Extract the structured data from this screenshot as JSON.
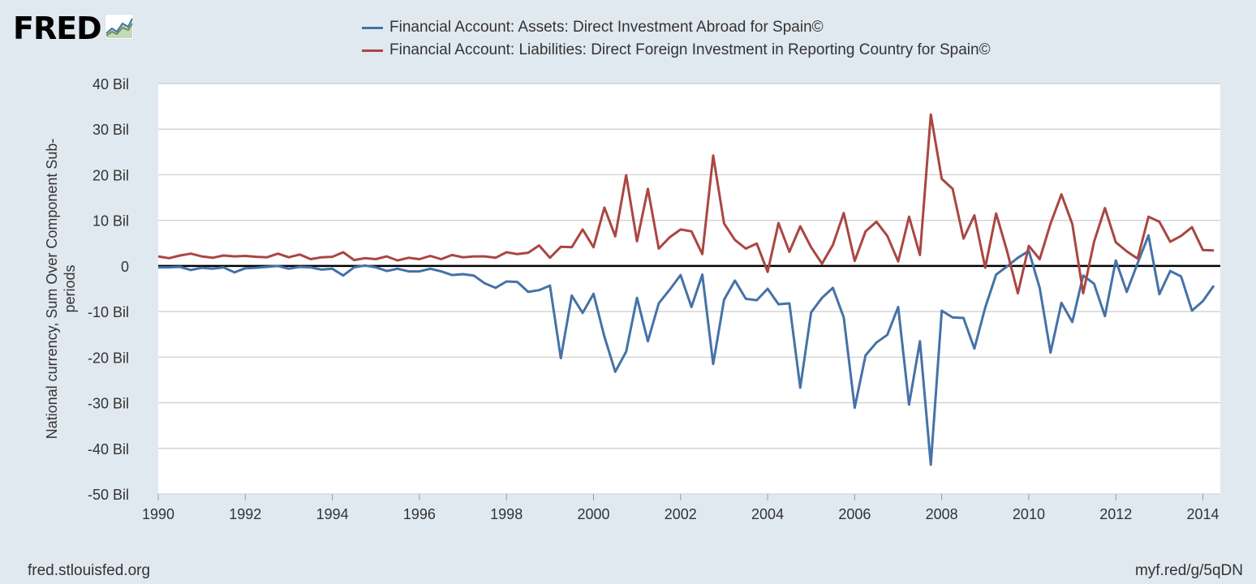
{
  "logo": {
    "text": "FRED",
    "icon": "chart-line-icon"
  },
  "footer": {
    "source": "fred.stlouisfed.org",
    "short_link": "myf.red/g/5qDN"
  },
  "chart_data": {
    "type": "line",
    "ylabel": "National currency, Sum Over Component Sub-periods",
    "ylim": [
      -50,
      40
    ],
    "xlim": [
      1990,
      2014.4
    ],
    "yticks": [
      40,
      30,
      20,
      10,
      0,
      -10,
      -20,
      -30,
      -40,
      -50
    ],
    "ytick_labels": [
      "40 Bil",
      "30 Bil",
      "20 Bil",
      "10 Bil",
      "0",
      "-10 Bil",
      "-20 Bil",
      "-30 Bil",
      "-40 Bil",
      "-50 Bil"
    ],
    "xticks": [
      1990,
      1992,
      1994,
      1996,
      1998,
      2000,
      2002,
      2004,
      2006,
      2008,
      2010,
      2012,
      2014
    ],
    "xtick_labels": [
      "1990",
      "1992",
      "1994",
      "1996",
      "1998",
      "2000",
      "2002",
      "2004",
      "2006",
      "2008",
      "2010",
      "2012",
      "2014"
    ],
    "grid": true,
    "x_start": 1990.0,
    "x_step": 0.25,
    "series": [
      {
        "name": "Financial Account: Assets: Direct Investment Abroad for Spain©",
        "color": "#4572a7",
        "values": [
          -0.3,
          -0.3,
          -0.2,
          -0.9,
          -0.4,
          -0.6,
          -0.3,
          -1.4,
          -0.5,
          -0.4,
          -0.2,
          0.0,
          -0.6,
          -0.2,
          -0.3,
          -0.8,
          -0.6,
          -2.1,
          -0.3,
          0.1,
          -0.3,
          -1.1,
          -0.6,
          -1.2,
          -1.2,
          -0.6,
          -1.2,
          -2.0,
          -1.8,
          -2.1,
          -3.8,
          -4.8,
          -3.4,
          -3.5,
          -5.7,
          -5.3,
          -4.3,
          -20.2,
          -6.5,
          -10.3,
          -6.1,
          -15.5,
          -23.2,
          -18.8,
          -7.0,
          -16.5,
          -8.2,
          -5.2,
          -2.0,
          -9.0,
          -1.9,
          -21.5,
          -7.4,
          -3.2,
          -7.2,
          -7.5,
          -5.0,
          -8.4,
          -8.2,
          -26.7,
          -10.2,
          -7.0,
          -4.8,
          -11.3,
          -31.1,
          -19.6,
          -16.8,
          -15.1,
          -9.0,
          -30.4,
          -16.5,
          -43.6,
          -9.8,
          -11.3,
          -11.4,
          -18.1,
          -9.1,
          -1.9,
          -0.1,
          1.8,
          3.3,
          -4.8,
          -19.0,
          -8.1,
          -12.3,
          -2.1,
          -3.9,
          -11.0,
          1.2,
          -5.7,
          0.6,
          6.7,
          -6.2,
          -1.1,
          -2.3,
          -9.8,
          -7.7,
          -4.3
        ]
      },
      {
        "name": "Financial Account: Liabilities: Direct Foreign Investment in Reporting Country for Spain©",
        "color": "#aa4643",
        "values": [
          2.1,
          1.7,
          2.3,
          2.7,
          2.1,
          1.8,
          2.3,
          2.1,
          2.2,
          2.0,
          1.9,
          2.7,
          1.9,
          2.5,
          1.5,
          1.9,
          2.0,
          3.0,
          1.3,
          1.7,
          1.5,
          2.1,
          1.2,
          1.8,
          1.5,
          2.2,
          1.5,
          2.4,
          1.9,
          2.1,
          2.1,
          1.8,
          3.0,
          2.6,
          2.9,
          4.5,
          1.8,
          4.2,
          4.1,
          8.0,
          4.1,
          12.8,
          6.5,
          19.9,
          5.4,
          16.9,
          3.8,
          6.3,
          8.0,
          7.6,
          2.6,
          24.2,
          9.3,
          5.7,
          3.8,
          4.9,
          -1.3,
          9.4,
          3.1,
          8.7,
          4.1,
          0.5,
          4.6,
          11.6,
          1.1,
          7.6,
          9.7,
          6.6,
          1.0,
          10.8,
          2.4,
          33.2,
          19.1,
          16.9,
          6.0,
          11.1,
          -0.4,
          11.5,
          3.3,
          -6.0,
          4.4,
          1.5,
          9.3,
          15.7,
          9.2,
          -6.0,
          5.3,
          12.7,
          5.2,
          3.2,
          1.6,
          10.8,
          9.7,
          5.3,
          6.6,
          8.5,
          3.5,
          3.4
        ]
      }
    ]
  }
}
